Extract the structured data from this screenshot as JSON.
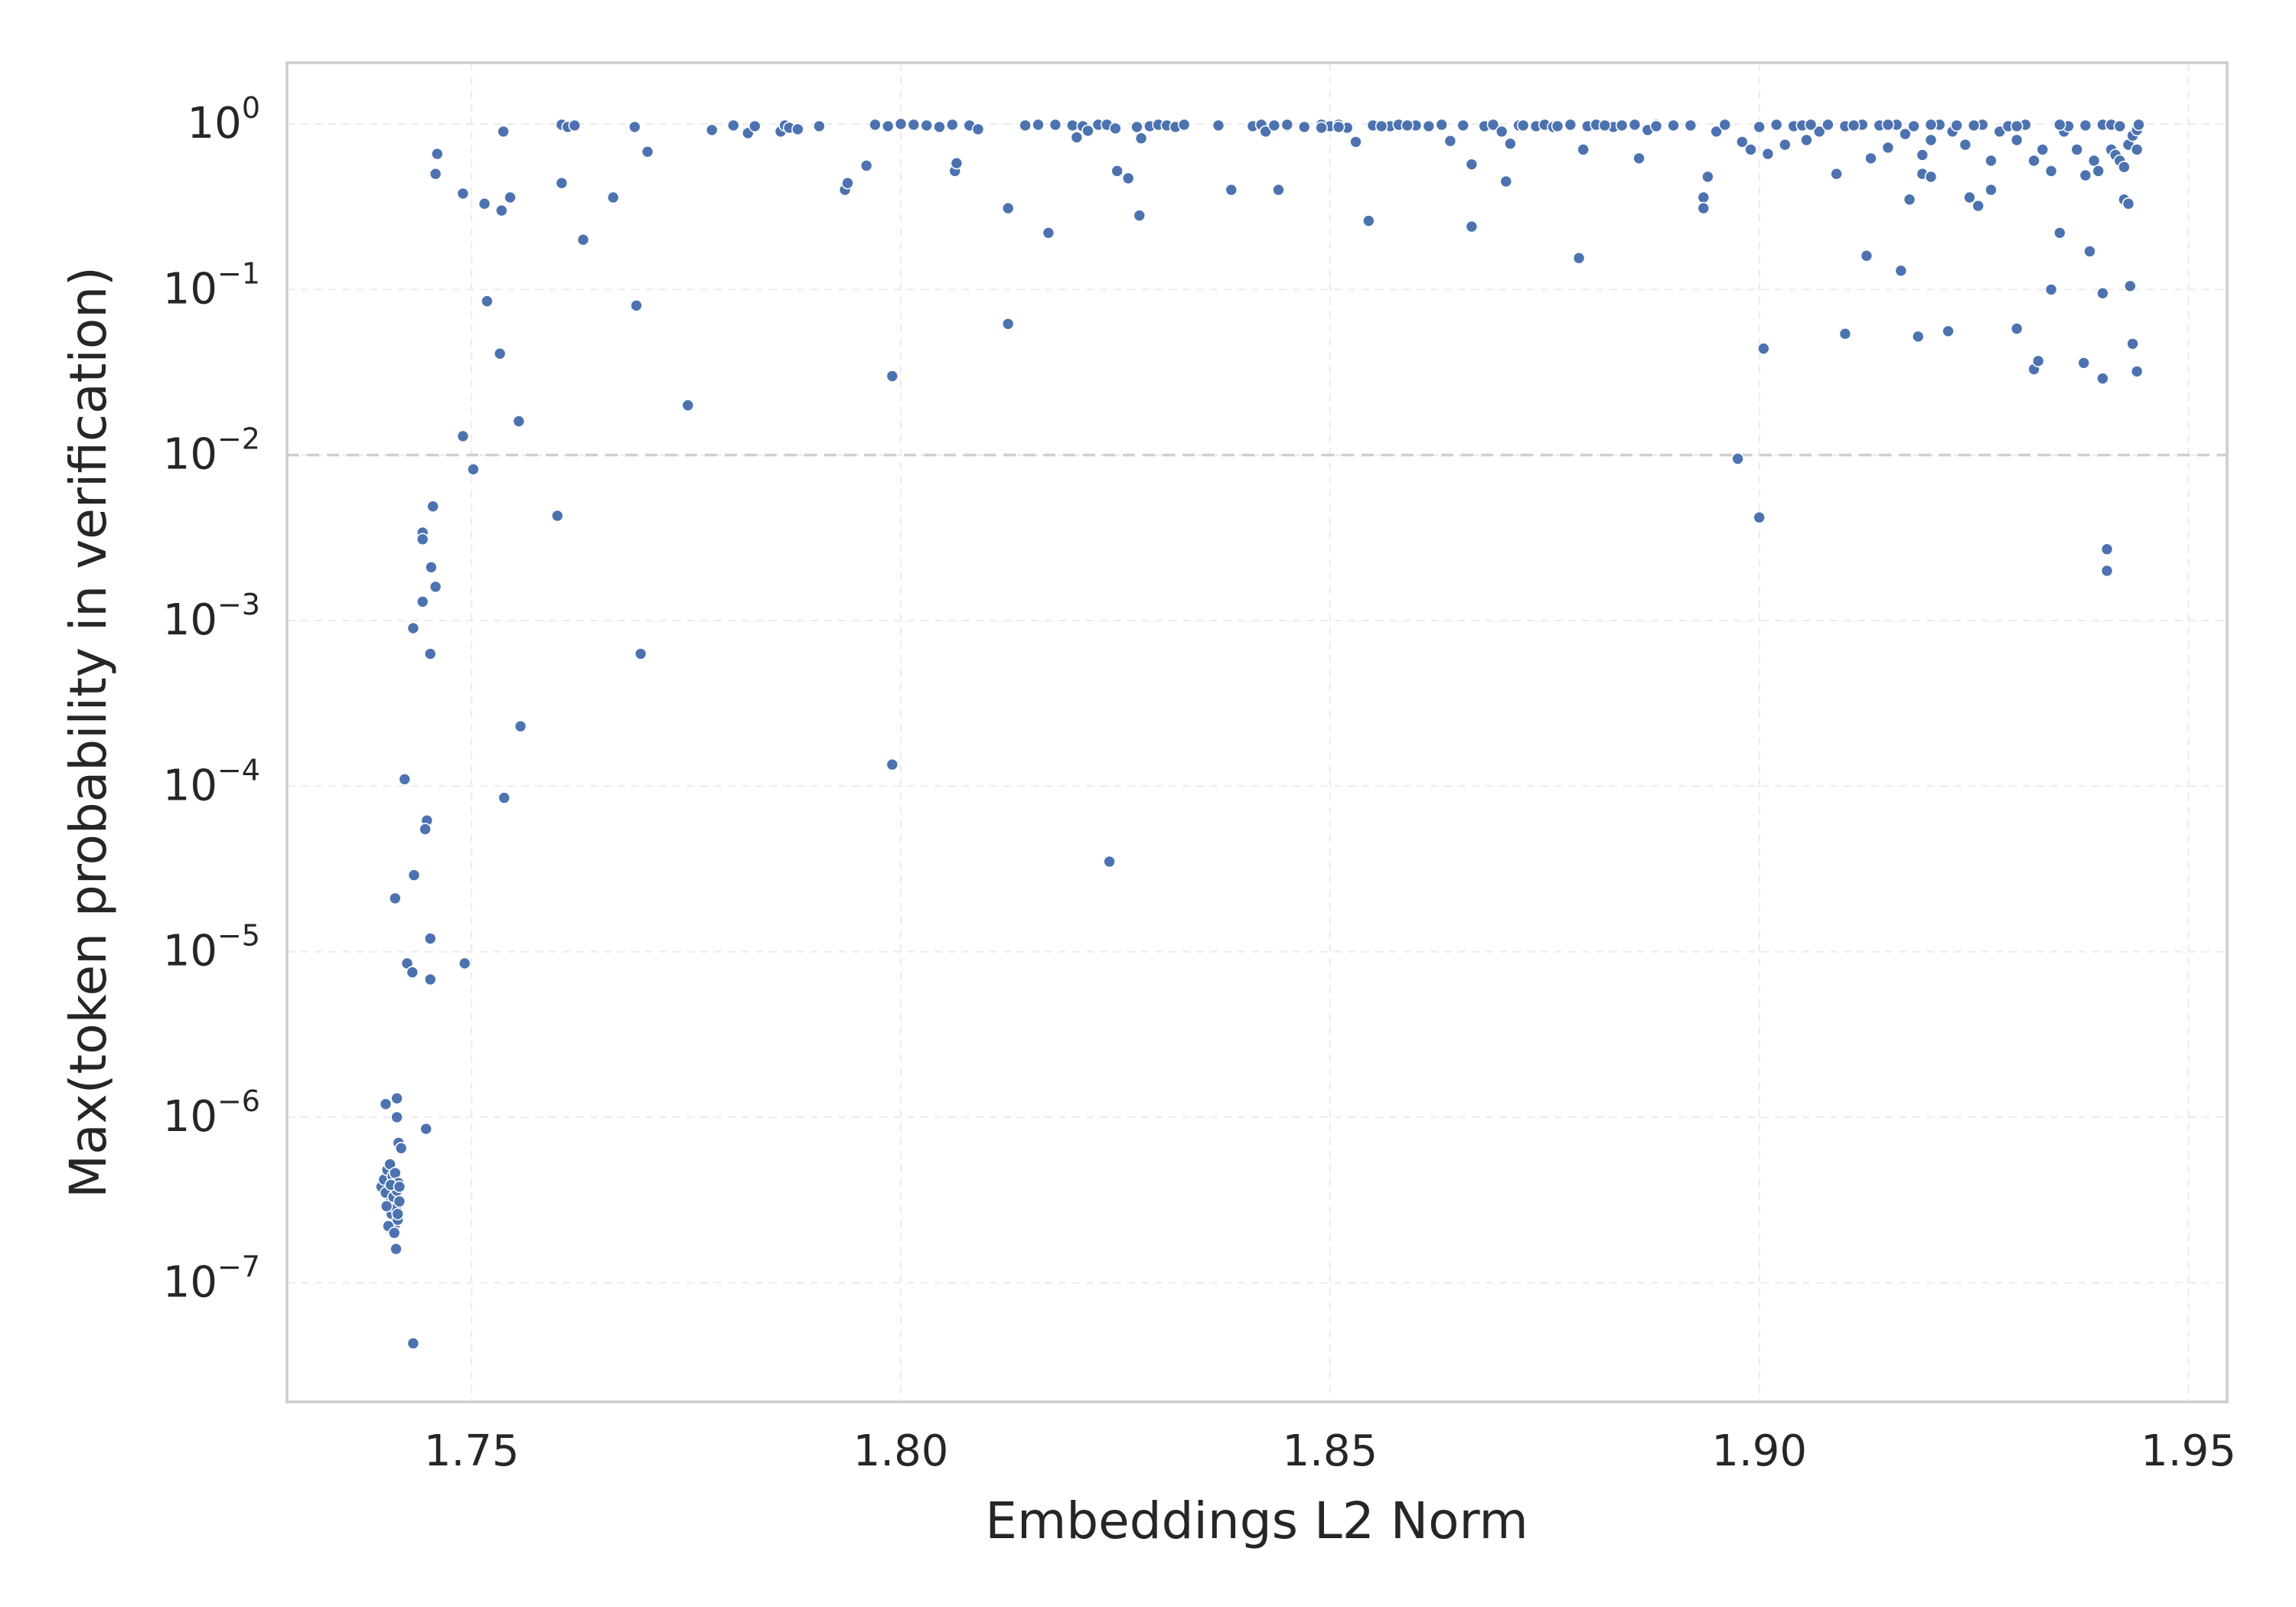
{
  "chart_data": {
    "type": "scatter",
    "xlabel": "Embeddings L2 Norm",
    "ylabel": "Max(token probability in verification)",
    "x_range": [
      1.7285,
      1.9545
    ],
    "y_range_log10": [
      -7.72,
      0.37
    ],
    "y_scale": "log",
    "x_ticks": [
      "1.75",
      "1.80",
      "1.85",
      "1.90",
      "1.95"
    ],
    "x_tick_values": [
      1.75,
      1.8,
      1.85,
      1.9,
      1.95
    ],
    "y_ticks": [
      {
        "base": "10",
        "exp": "0",
        "value": 1
      },
      {
        "base": "10",
        "exp": "−1",
        "value": 0.1
      },
      {
        "base": "10",
        "exp": "−2",
        "value": 0.01
      },
      {
        "base": "10",
        "exp": "−3",
        "value": 0.001
      },
      {
        "base": "10",
        "exp": "−4",
        "value": 0.0001
      },
      {
        "base": "10",
        "exp": "−5",
        "value": 1e-05
      },
      {
        "base": "10",
        "exp": "−6",
        "value": 1e-06
      },
      {
        "base": "10",
        "exp": "−7",
        "value": 1e-07
      }
    ],
    "reference_line_y": 0.01,
    "grid": true,
    "point_color": "#4c72b0",
    "series": [
      {
        "points": [
          [
            1.74,
            1.2e-06
          ],
          [
            1.7413,
            1.3e-06
          ],
          [
            1.7413,
            1e-06
          ],
          [
            1.7415,
            7e-07
          ],
          [
            1.7418,
            6.5e-07
          ],
          [
            1.7447,
            8.5e-07
          ],
          [
            1.7395,
            3.8e-07
          ],
          [
            1.7398,
            4.2e-07
          ],
          [
            1.74,
            3.5e-07
          ],
          [
            1.7402,
            4.8e-07
          ],
          [
            1.7404,
            3e-07
          ],
          [
            1.7405,
            5.2e-07
          ],
          [
            1.7407,
            2.6e-07
          ],
          [
            1.7408,
            4.4e-07
          ],
          [
            1.7409,
            3.3e-07
          ],
          [
            1.741,
            2.2e-07
          ],
          [
            1.7411,
            4.6e-07
          ],
          [
            1.7412,
            2.8e-07
          ],
          [
            1.7413,
            3.6e-07
          ],
          [
            1.7414,
            2.4e-07
          ],
          [
            1.7415,
            4e-07
          ],
          [
            1.7416,
            3.1e-07
          ],
          [
            1.7403,
            2.2e-07
          ],
          [
            1.741,
            2e-07
          ],
          [
            1.7412,
            1.6e-07
          ],
          [
            1.7406,
            3.9e-07
          ],
          [
            1.7401,
            2.9e-07
          ],
          [
            1.7416,
            3.8e-07
          ],
          [
            1.7414,
            2.6e-07
          ],
          [
            1.7432,
            4.3e-08
          ],
          [
            1.7422,
            0.00011
          ],
          [
            1.7448,
            6.2e-05
          ],
          [
            1.7446,
            5.5e-05
          ],
          [
            1.7433,
            2.9e-05
          ],
          [
            1.7411,
            2.1e-05
          ],
          [
            1.7452,
            1.2e-05
          ],
          [
            1.7425,
            8.5e-06
          ],
          [
            1.7431,
            7.5e-06
          ],
          [
            1.7452,
            6.8e-06
          ],
          [
            1.7492,
            8.5e-06
          ],
          [
            1.7455,
            0.0049
          ],
          [
            1.7443,
            0.0034
          ],
          [
            1.7443,
            0.0031
          ],
          [
            1.7453,
            0.0021
          ],
          [
            1.7458,
            0.0016
          ],
          [
            1.7443,
            0.0013
          ],
          [
            1.7432,
            0.0009
          ],
          [
            1.7452,
            0.00063
          ],
          [
            1.749,
            0.013
          ],
          [
            1.7502,
            0.0082
          ],
          [
            1.746,
            0.66
          ],
          [
            1.7458,
            0.5
          ],
          [
            1.749,
            0.38
          ],
          [
            1.7515,
            0.33
          ],
          [
            1.7535,
            0.3
          ],
          [
            1.7545,
            0.36
          ],
          [
            1.7518,
            0.085
          ],
          [
            1.7533,
            0.041
          ],
          [
            1.7555,
            0.016
          ],
          [
            1.7537,
            0.9
          ],
          [
            1.7538,
            8.5e-05
          ],
          [
            1.7557,
            0.00023
          ],
          [
            1.76,
            0.0043
          ],
          [
            1.7605,
            0.44
          ],
          [
            1.763,
            0.2
          ],
          [
            1.7665,
            0.36
          ],
          [
            1.7692,
            0.08
          ],
          [
            1.7697,
            0.00063
          ],
          [
            1.7705,
            0.68
          ],
          [
            1.7752,
            0.02
          ],
          [
            1.769,
            0.96
          ],
          [
            1.7605,
            0.99
          ],
          [
            1.7612,
            0.96
          ],
          [
            1.762,
            0.98
          ],
          [
            1.778,
            0.92
          ],
          [
            1.7805,
            0.98
          ],
          [
            1.7822,
            0.88
          ],
          [
            1.783,
            0.97
          ],
          [
            1.786,
            0.9
          ],
          [
            1.7865,
            0.98
          ],
          [
            1.787,
            0.95
          ],
          [
            1.788,
            0.93
          ],
          [
            1.7905,
            0.97
          ],
          [
            1.7935,
            0.4
          ],
          [
            1.7938,
            0.44
          ],
          [
            1.796,
            0.56
          ],
          [
            1.797,
            0.99
          ],
          [
            1.7985,
            0.97
          ],
          [
            1.799,
            0.03
          ],
          [
            1.799,
            0.000135
          ],
          [
            1.8,
            1.0
          ],
          [
            1.8015,
            0.99
          ],
          [
            1.803,
            0.98
          ],
          [
            1.8045,
            0.96
          ],
          [
            1.806,
            0.99
          ],
          [
            1.8063,
            0.52
          ],
          [
            1.8065,
            0.58
          ],
          [
            1.808,
            0.98
          ],
          [
            1.809,
            0.93
          ],
          [
            1.8125,
            0.31
          ],
          [
            1.8125,
            0.062
          ],
          [
            1.8145,
            0.98
          ],
          [
            1.816,
            0.99
          ],
          [
            1.8172,
            0.22
          ],
          [
            1.818,
            0.99
          ],
          [
            1.82,
            0.98
          ],
          [
            1.8205,
            0.83
          ],
          [
            1.8212,
            0.97
          ],
          [
            1.8218,
            0.91
          ],
          [
            1.823,
            0.99
          ],
          [
            1.824,
            0.99
          ],
          [
            1.8243,
            3.5e-05
          ],
          [
            1.825,
            0.94
          ],
          [
            1.8252,
            0.52
          ],
          [
            1.8265,
            0.47
          ],
          [
            1.8278,
            0.28
          ],
          [
            1.8275,
            0.96
          ],
          [
            1.828,
            0.82
          ],
          [
            1.829,
            0.97
          ],
          [
            1.83,
            0.99
          ],
          [
            1.831,
            0.98
          ],
          [
            1.832,
            0.96
          ],
          [
            1.833,
            0.99
          ],
          [
            1.837,
            0.98
          ],
          [
            1.8385,
            0.4
          ],
          [
            1.841,
            0.97
          ],
          [
            1.842,
            0.99
          ],
          [
            1.8425,
            0.9
          ],
          [
            1.844,
            0.4
          ],
          [
            1.8435,
            0.98
          ],
          [
            1.845,
            0.97
          ],
          [
            1.847,
            0.96
          ],
          [
            1.849,
            0.99
          ],
          [
            1.85,
            0.97
          ],
          [
            1.851,
            0.99
          ],
          [
            1.852,
            0.95
          ],
          [
            1.853,
            0.78
          ],
          [
            1.8545,
            0.26
          ],
          [
            1.855,
            0.98
          ],
          [
            1.857,
            0.97
          ],
          [
            1.858,
            0.99
          ],
          [
            1.86,
            0.98
          ],
          [
            1.8615,
            0.97
          ],
          [
            1.863,
            0.99
          ],
          [
            1.864,
            0.79
          ],
          [
            1.8655,
            0.98
          ],
          [
            1.8665,
            0.57
          ],
          [
            1.8665,
            0.24
          ],
          [
            1.868,
            0.97
          ],
          [
            1.869,
            0.99
          ],
          [
            1.87,
            0.9
          ],
          [
            1.8705,
            0.45
          ],
          [
            1.871,
            0.76
          ],
          [
            1.872,
            0.98
          ],
          [
            1.874,
            0.97
          ],
          [
            1.875,
            0.99
          ],
          [
            1.876,
            0.96
          ],
          [
            1.878,
            0.99
          ],
          [
            1.879,
            0.155
          ],
          [
            1.8795,
            0.7
          ],
          [
            1.88,
            0.97
          ],
          [
            1.881,
            0.99
          ],
          [
            1.883,
            0.96
          ],
          [
            1.884,
            0.98
          ],
          [
            1.8855,
            0.99
          ],
          [
            1.886,
            0.62
          ],
          [
            1.887,
            0.92
          ],
          [
            1.888,
            0.99
          ],
          [
            1.89,
            0.98
          ],
          [
            1.892,
            0.99
          ],
          [
            1.8935,
            0.36
          ],
          [
            1.8935,
            0.31
          ],
          [
            1.894,
            0.48
          ],
          [
            1.895,
            0.9
          ],
          [
            1.896,
            0.99
          ],
          [
            1.8975,
            0.0095
          ],
          [
            1.898,
            0.78
          ],
          [
            1.899,
            0.7
          ],
          [
            1.9,
            0.96
          ],
          [
            1.9,
            0.0042
          ],
          [
            1.9005,
            0.044
          ],
          [
            1.901,
            0.66
          ],
          [
            1.902,
            0.99
          ],
          [
            1.903,
            0.75
          ],
          [
            1.904,
            0.97
          ],
          [
            1.905,
            0.98
          ],
          [
            1.9055,
            0.8
          ],
          [
            1.907,
            0.9
          ],
          [
            1.908,
            0.99
          ],
          [
            1.909,
            0.5
          ],
          [
            1.91,
            0.97
          ],
          [
            1.91,
            0.054
          ],
          [
            1.912,
            0.99
          ],
          [
            1.9125,
            0.16
          ],
          [
            1.913,
            0.62
          ],
          [
            1.914,
            0.98
          ],
          [
            1.915,
            0.72
          ],
          [
            1.916,
            0.99
          ],
          [
            1.9165,
            0.13
          ],
          [
            1.917,
            0.87
          ],
          [
            1.9175,
            0.35
          ],
          [
            1.918,
            0.97
          ],
          [
            1.9185,
            0.052
          ],
          [
            1.919,
            0.65
          ],
          [
            1.919,
            0.5
          ],
          [
            1.92,
            0.48
          ],
          [
            1.92,
            0.8
          ],
          [
            1.921,
            0.99
          ],
          [
            1.922,
            0.056
          ],
          [
            1.9225,
            0.9
          ],
          [
            1.923,
            0.98
          ],
          [
            1.924,
            0.75
          ],
          [
            1.9245,
            0.36
          ],
          [
            1.9255,
            0.32
          ],
          [
            1.926,
            0.99
          ],
          [
            1.927,
            0.4
          ],
          [
            1.927,
            0.6
          ],
          [
            1.928,
            0.9
          ],
          [
            1.929,
            0.97
          ],
          [
            1.93,
            0.058
          ],
          [
            1.93,
            0.8
          ],
          [
            1.931,
            0.99
          ],
          [
            1.932,
            0.033
          ],
          [
            1.932,
            0.6
          ],
          [
            1.9325,
            0.037
          ],
          [
            1.933,
            0.7
          ],
          [
            1.934,
            0.52
          ],
          [
            1.934,
            0.1
          ],
          [
            1.935,
            0.22
          ],
          [
            1.9355,
            0.9
          ],
          [
            1.936,
            0.97
          ],
          [
            1.937,
            0.7
          ],
          [
            1.9378,
            0.036
          ],
          [
            1.938,
            0.49
          ],
          [
            1.9385,
            0.17
          ],
          [
            1.939,
            0.6
          ],
          [
            1.9395,
            0.52
          ],
          [
            1.94,
            0.029
          ],
          [
            1.94,
            0.095
          ],
          [
            1.94,
            0.99
          ],
          [
            1.9405,
            0.0027
          ],
          [
            1.9405,
            0.002
          ],
          [
            1.941,
            0.7
          ],
          [
            1.9415,
            0.65
          ],
          [
            1.942,
            0.6
          ],
          [
            1.9425,
            0.55
          ],
          [
            1.9425,
            0.35
          ],
          [
            1.943,
            0.33
          ],
          [
            1.943,
            0.75
          ],
          [
            1.9432,
            0.105
          ],
          [
            1.9435,
            0.85
          ],
          [
            1.9435,
            0.047
          ],
          [
            1.944,
            0.7
          ],
          [
            1.944,
            0.032
          ],
          [
            1.944,
            0.92
          ],
          [
            1.9442,
            0.99
          ],
          [
            1.892,
            0.98
          ],
          [
            1.888,
            0.97
          ],
          [
            1.882,
            0.98
          ],
          [
            1.8765,
            0.97
          ],
          [
            1.8725,
            0.98
          ],
          [
            1.859,
            0.98
          ],
          [
            1.856,
            0.97
          ],
          [
            1.851,
            0.96
          ],
          [
            1.849,
            0.95
          ],
          [
            1.845,
            0.99
          ],
          [
            1.906,
            0.99
          ],
          [
            1.911,
            0.98
          ],
          [
            1.915,
            0.99
          ],
          [
            1.92,
            0.99
          ],
          [
            1.925,
            0.98
          ],
          [
            1.93,
            0.97
          ],
          [
            1.935,
            0.99
          ],
          [
            1.938,
            0.98
          ],
          [
            1.941,
            0.99
          ],
          [
            1.942,
            0.97
          ]
        ]
      }
    ]
  }
}
